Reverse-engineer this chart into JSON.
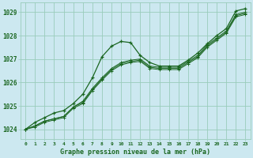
{
  "title": "Graphe pression niveau de la mer (hPa)",
  "background_color": "#cce8f0",
  "grid_color": "#99ccbb",
  "line_color": "#1a6620",
  "xlim": [
    -0.5,
    23.5
  ],
  "ylim": [
    1023.6,
    1029.4
  ],
  "yticks": [
    1024,
    1025,
    1026,
    1027,
    1028,
    1029
  ],
  "xticks": [
    0,
    1,
    2,
    3,
    4,
    5,
    6,
    7,
    8,
    9,
    10,
    11,
    12,
    13,
    14,
    15,
    16,
    17,
    18,
    19,
    20,
    21,
    22,
    23
  ],
  "series_hump": [
    1024.0,
    1024.3,
    1024.5,
    1024.7,
    1024.8,
    1025.1,
    1025.5,
    1026.2,
    1027.1,
    1027.55,
    1027.75,
    1027.7,
    1027.15,
    1026.85,
    1026.7,
    1026.7,
    1026.7,
    1026.95,
    1027.25,
    1027.65,
    1028.0,
    1028.3,
    1029.05,
    1029.15
  ],
  "series_linear": [
    [
      1024.0,
      1024.15,
      1024.35,
      1024.45,
      1024.55,
      1024.95,
      1025.2,
      1025.75,
      1026.2,
      1026.6,
      1026.85,
      1026.95,
      1027.0,
      1026.7,
      1026.65,
      1026.65,
      1026.65,
      1026.9,
      1027.15,
      1027.6,
      1027.9,
      1028.2,
      1028.9,
      1029.0
    ],
    [
      1024.0,
      1024.15,
      1024.35,
      1024.45,
      1024.55,
      1024.95,
      1025.15,
      1025.7,
      1026.15,
      1026.55,
      1026.8,
      1026.9,
      1026.95,
      1026.65,
      1026.6,
      1026.6,
      1026.6,
      1026.85,
      1027.1,
      1027.55,
      1027.85,
      1028.15,
      1028.85,
      1028.95
    ],
    [
      1024.0,
      1024.1,
      1024.3,
      1024.4,
      1024.5,
      1024.9,
      1025.1,
      1025.65,
      1026.1,
      1026.5,
      1026.75,
      1026.85,
      1026.9,
      1026.6,
      1026.55,
      1026.55,
      1026.55,
      1026.8,
      1027.05,
      1027.5,
      1027.8,
      1028.1,
      1028.8,
      1028.9
    ]
  ]
}
